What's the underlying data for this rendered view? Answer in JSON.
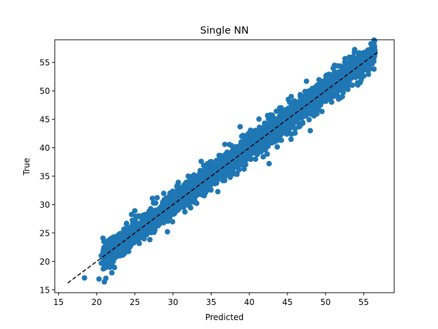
{
  "chart_data": {
    "type": "scatter",
    "title": "Single NN",
    "xlabel": "Predicted",
    "ylabel": "True",
    "xlim": [
      14.5,
      59.0
    ],
    "ylim": [
      14.5,
      59.0
    ],
    "xticks": [
      15,
      20,
      25,
      30,
      35,
      40,
      45,
      50,
      55
    ],
    "yticks": [
      15,
      20,
      25,
      30,
      35,
      40,
      45,
      50,
      55
    ],
    "grid": false,
    "marker_color": "#1f77b4",
    "reference_line": {
      "style": "dashed",
      "color": "#000000",
      "from": [
        16.2,
        16.2
      ],
      "to": [
        57.0,
        57.0
      ]
    },
    "points_sampled": {
      "band": {
        "x_range": [
          20.8,
          56.5
        ],
        "spread": 1.6,
        "count": 2500
      },
      "outliers": [
        {
          "x": 18.4,
          "y": 17.1
        },
        {
          "x": 20.3,
          "y": 16.9
        },
        {
          "x": 21.0,
          "y": 16.4
        },
        {
          "x": 20.6,
          "y": 19.7
        },
        {
          "x": 20.6,
          "y": 21.0
        },
        {
          "x": 25.0,
          "y": 28.9
        },
        {
          "x": 30.7,
          "y": 33.9
        },
        {
          "x": 32.0,
          "y": 35.0
        },
        {
          "x": 33.7,
          "y": 37.6
        },
        {
          "x": 34.8,
          "y": 33.1
        },
        {
          "x": 36.8,
          "y": 40.6
        },
        {
          "x": 37.5,
          "y": 34.8
        },
        {
          "x": 38.8,
          "y": 43.7
        },
        {
          "x": 42.6,
          "y": 37.2
        },
        {
          "x": 44.0,
          "y": 47.0
        },
        {
          "x": 45.5,
          "y": 49.0
        },
        {
          "x": 47.5,
          "y": 51.7
        },
        {
          "x": 48.0,
          "y": 43.0
        },
        {
          "x": 51.0,
          "y": 54.0
        },
        {
          "x": 52.2,
          "y": 49.0
        },
        {
          "x": 53.6,
          "y": 56.0
        },
        {
          "x": 55.5,
          "y": 57.0
        },
        {
          "x": 56.0,
          "y": 56.4
        }
      ]
    }
  }
}
